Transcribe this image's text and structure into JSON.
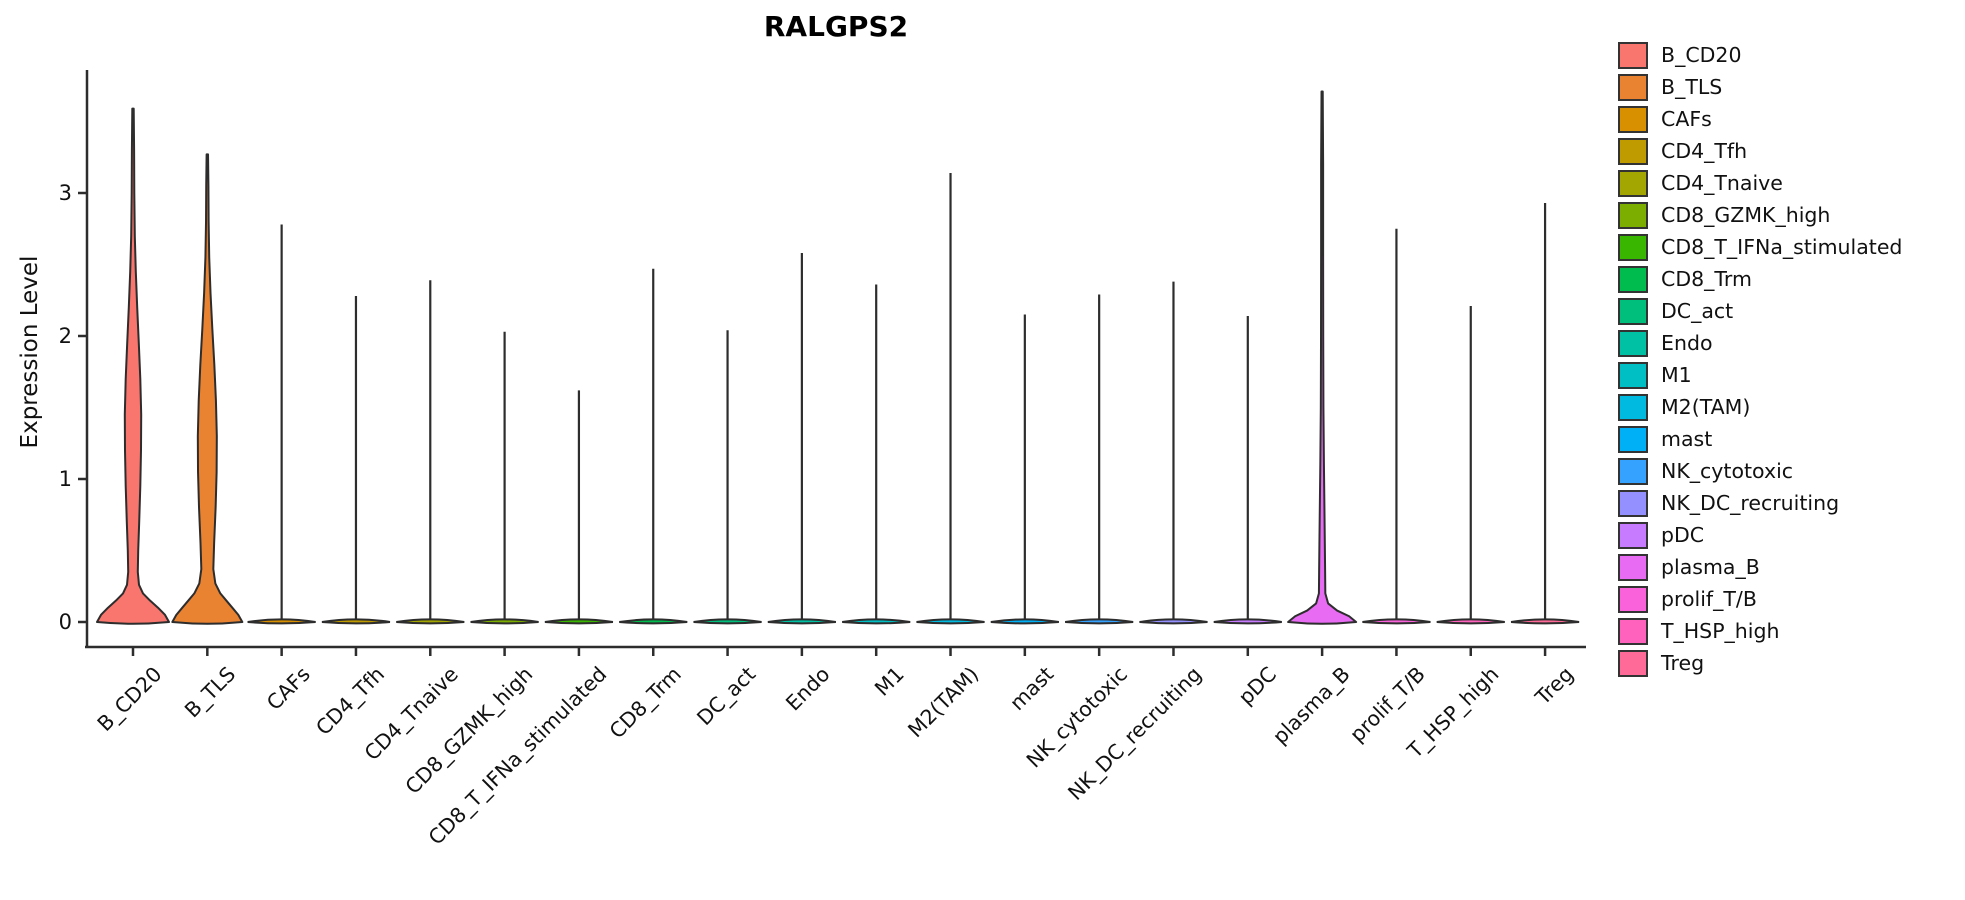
{
  "title": "RALGPS2",
  "y_axis": {
    "label": "Expression Level"
  },
  "chart_data": {
    "type": "violin",
    "title": "RALGPS2",
    "xlabel": "",
    "ylabel": "Expression Level",
    "ylim": [
      -0.2,
      3.88
    ],
    "yticks": [
      0,
      1,
      2,
      3
    ],
    "grid": false,
    "legend_position": "right",
    "categories": [
      "B_CD20",
      "B_TLS",
      "CAFs",
      "CD4_Tfh",
      "CD4_Tnaive",
      "CD8_GZMK_high",
      "CD8_T_IFNa_stimulated",
      "CD8_Trm",
      "DC_act",
      "Endo",
      "M1",
      "M2(TAM)",
      "mast",
      "NK_cytotoxic",
      "NK_DC_recruiting",
      "pDC",
      "plasma_B",
      "prolif_T/B",
      "T_HSP_high",
      "Treg"
    ],
    "colors": [
      "#F8766D",
      "#EA8331",
      "#D89000",
      "#C09B00",
      "#A3A500",
      "#7CAE00",
      "#39B600",
      "#00BB4E",
      "#00BF7D",
      "#00C1A3",
      "#00BFC4",
      "#00BAE0",
      "#00B0F6",
      "#35A2FF",
      "#9590FF",
      "#C77CFF",
      "#E76BF3",
      "#FA62DB",
      "#FF62BC",
      "#FF6A98"
    ],
    "max_expression": [
      3.59,
      3.27,
      2.78,
      2.28,
      2.39,
      2.03,
      1.62,
      2.47,
      2.04,
      2.58,
      2.36,
      3.14,
      2.15,
      2.29,
      2.38,
      2.14,
      3.71,
      2.75,
      2.21,
      2.93
    ],
    "density_profiles": {
      "B_CD20": [
        [
          0,
          36
        ],
        [
          0.05,
          32
        ],
        [
          0.1,
          25
        ],
        [
          0.15,
          17
        ],
        [
          0.2,
          10
        ],
        [
          0.26,
          6
        ],
        [
          0.35,
          4.8
        ],
        [
          0.5,
          5.2
        ],
        [
          0.7,
          6.2
        ],
        [
          0.95,
          7.3
        ],
        [
          1.2,
          8.0
        ],
        [
          1.45,
          8.2
        ],
        [
          1.7,
          7.3
        ],
        [
          1.95,
          5.8
        ],
        [
          2.2,
          4.2
        ],
        [
          2.45,
          2.8
        ],
        [
          2.7,
          1.8
        ],
        [
          3.0,
          1.3
        ],
        [
          3.3,
          1.1
        ],
        [
          3.59,
          0.7
        ]
      ],
      "B_TLS": [
        [
          0,
          35
        ],
        [
          0.05,
          31
        ],
        [
          0.1,
          25
        ],
        [
          0.15,
          19
        ],
        [
          0.2,
          13
        ],
        [
          0.27,
          8
        ],
        [
          0.37,
          6
        ],
        [
          0.55,
          6.8
        ],
        [
          0.8,
          8.3
        ],
        [
          1.05,
          9.3
        ],
        [
          1.3,
          9.5
        ],
        [
          1.55,
          8.6
        ],
        [
          1.8,
          7.0
        ],
        [
          2.05,
          5.0
        ],
        [
          2.3,
          3.2
        ],
        [
          2.55,
          1.9
        ],
        [
          2.8,
          1.3
        ],
        [
          3.05,
          1.1
        ],
        [
          3.27,
          0.7
        ]
      ],
      "plasma_B": [
        [
          0,
          34
        ],
        [
          0.04,
          27
        ],
        [
          0.08,
          15
        ],
        [
          0.13,
          6
        ],
        [
          0.2,
          3.2
        ],
        [
          0.35,
          3.0
        ],
        [
          0.55,
          2.7
        ],
        [
          0.8,
          2.3
        ],
        [
          1.1,
          1.8
        ],
        [
          1.5,
          1.3
        ],
        [
          2.0,
          1.1
        ],
        [
          2.6,
          1.0
        ],
        [
          3.2,
          1.0
        ],
        [
          3.71,
          0.6
        ]
      ]
    },
    "flat_base_half_width": 34,
    "outline_color": "#2d2d2d",
    "axis_color": "#2d2d2d",
    "text_color": "#111111"
  }
}
